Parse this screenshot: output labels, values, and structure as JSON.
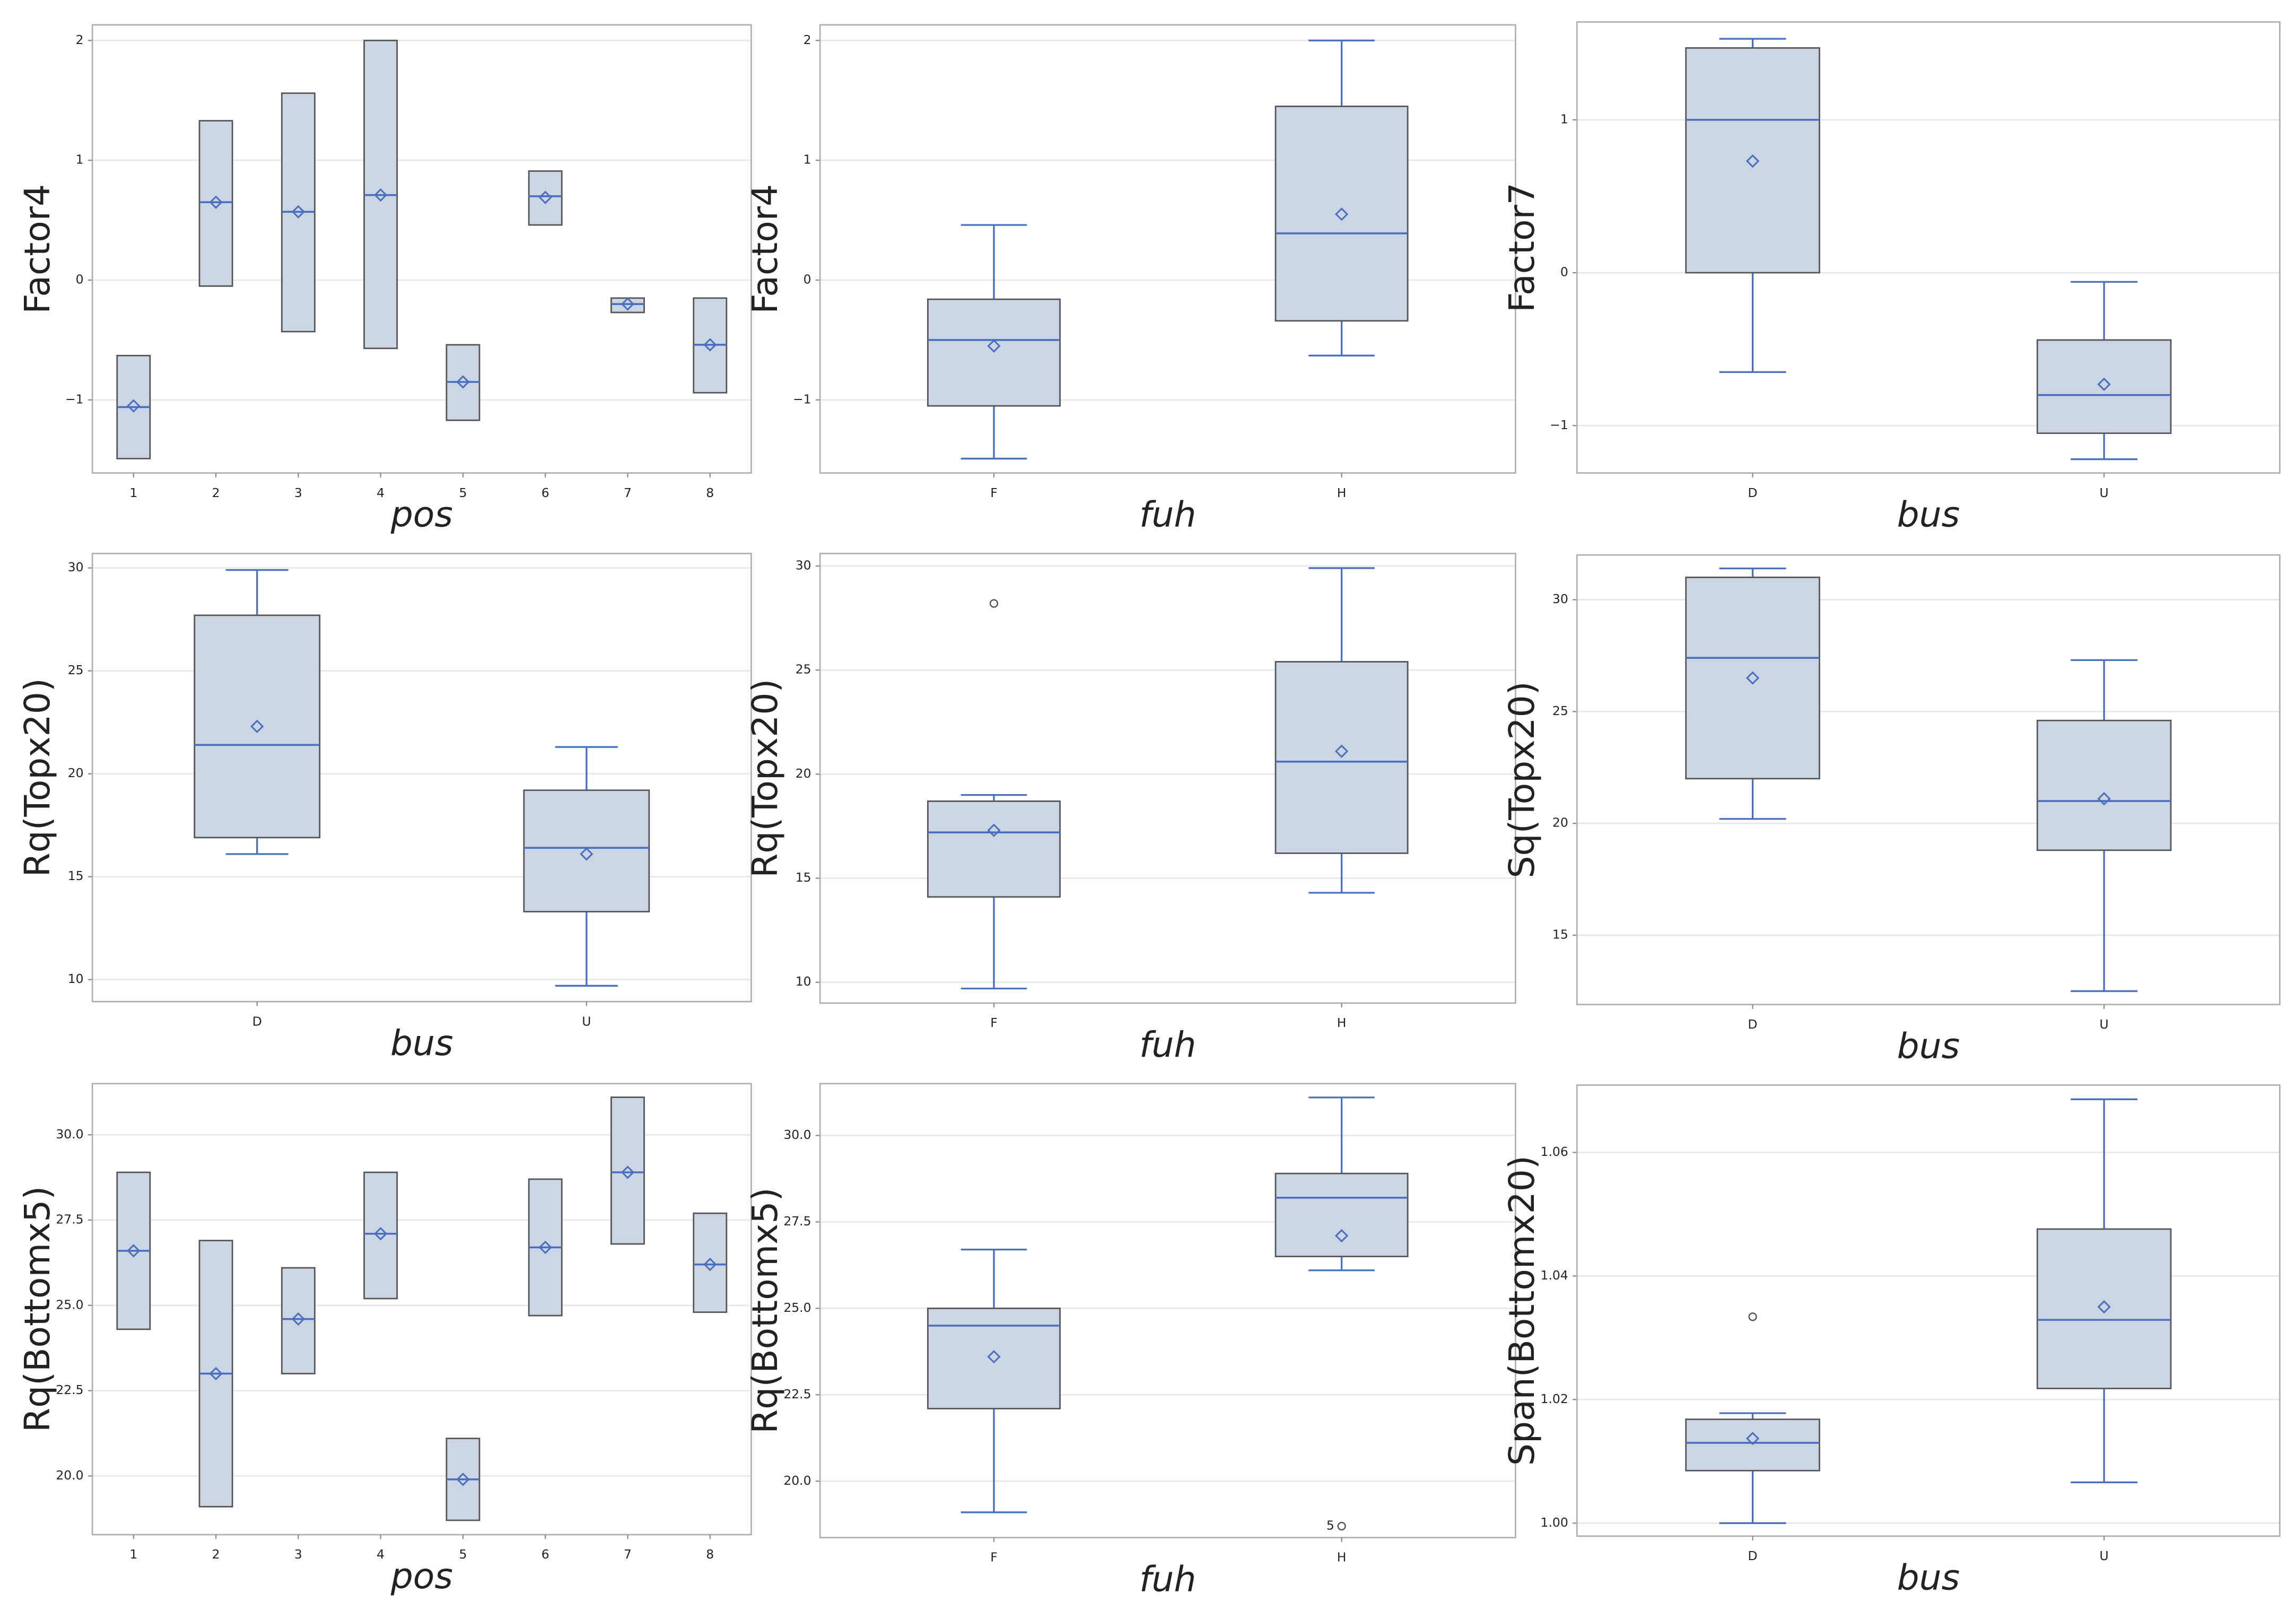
{
  "chart_data": [
    {
      "type": "box",
      "x_label": "pos",
      "y_label": "Factor4",
      "categories": [
        "1",
        "2",
        "3",
        "4",
        "5",
        "6",
        "7",
        "8"
      ],
      "ylim": [
        -1.61,
        2.13
      ],
      "yticks": [
        {
          "value": -1,
          "label": "−1"
        },
        0,
        1,
        2
      ],
      "grid": true,
      "color": "#4a6fbf",
      "fill": "#cbd5e4",
      "boxes": [
        {
          "q1": -1.49,
          "median": -1.06,
          "q3": -0.63,
          "mean": -1.05
        },
        {
          "q1": -0.05,
          "median": 0.65,
          "q3": 1.33,
          "mean": 0.65
        },
        {
          "q1": -0.43,
          "median": 0.57,
          "q3": 1.56,
          "mean": 0.57
        },
        {
          "q1": -0.57,
          "median": 0.71,
          "q3": 2.0,
          "mean": 0.71
        },
        {
          "q1": -1.17,
          "median": -0.85,
          "q3": -0.54,
          "mean": -0.85
        },
        {
          "q1": 0.46,
          "median": 0.7,
          "q3": 0.91,
          "mean": 0.69
        },
        {
          "q1": -0.27,
          "median": -0.2,
          "q3": -0.15,
          "mean": -0.2
        },
        {
          "q1": -0.94,
          "median": -0.54,
          "q3": -0.15,
          "mean": -0.54
        }
      ]
    },
    {
      "type": "box",
      "x_label": "fuh",
      "y_label": "Factor4",
      "categories": [
        "F",
        "H"
      ],
      "ylim": [
        -1.61,
        2.13
      ],
      "yticks": [
        {
          "value": -1,
          "label": "−1"
        },
        0,
        1,
        2
      ],
      "grid": true,
      "color": "#4a6fbf",
      "fill": "#cbd5e4",
      "boxes": [
        {
          "min": -1.49,
          "q1": -1.05,
          "median": -0.5,
          "q3": -0.16,
          "max": 0.46,
          "mean": -0.55
        },
        {
          "min": -0.63,
          "q1": -0.34,
          "median": 0.39,
          "q3": 1.45,
          "max": 2.0,
          "mean": 0.55
        }
      ]
    },
    {
      "type": "box",
      "x_label": "bus",
      "y_label": "Factor7",
      "categories": [
        "D",
        "U"
      ],
      "ylim": [
        -1.31,
        1.64
      ],
      "yticks": [
        {
          "value": -1,
          "label": "−1"
        },
        0,
        1
      ],
      "grid": true,
      "color": "#4a6fbf",
      "fill": "#cbd5e4",
      "boxes": [
        {
          "min": -0.65,
          "q1": 0.0,
          "median": 1.0,
          "q3": 1.47,
          "max": 1.53,
          "mean": 0.73
        },
        {
          "min": -1.22,
          "q1": -1.05,
          "median": -0.8,
          "q3": -0.44,
          "max": -0.06,
          "mean": -0.73
        }
      ]
    },
    {
      "type": "box",
      "x_label": "bus",
      "y_label": "Rq(Topx20)",
      "categories": [
        "D",
        "U"
      ],
      "ylim": [
        8.93,
        30.7
      ],
      "yticks": [
        10,
        15,
        20,
        25,
        30
      ],
      "grid": true,
      "color": "#4a6fbf",
      "fill": "#cbd5e4",
      "boxes": [
        {
          "min": 16.1,
          "q1": 16.9,
          "median": 21.4,
          "q3": 27.7,
          "max": 29.9,
          "mean": 22.3
        },
        {
          "min": 9.7,
          "q1": 13.3,
          "median": 16.4,
          "q3": 19.2,
          "max": 21.3,
          "mean": 16.1
        }
      ]
    },
    {
      "type": "box",
      "x_label": "fuh",
      "y_label": "Rq(Topx20)",
      "categories": [
        "F",
        "H"
      ],
      "ylim": [
        9.0,
        30.6
      ],
      "yticks": [
        10,
        15,
        20,
        25,
        30
      ],
      "grid": true,
      "color": "#4a6fbf",
      "fill": "#cbd5e4",
      "boxes": [
        {
          "min": 9.7,
          "q1": 14.1,
          "median": 17.2,
          "q3": 18.7,
          "max": 19.0,
          "mean": 17.3,
          "outliers": [
            28.2
          ]
        },
        {
          "min": 14.3,
          "q1": 16.2,
          "median": 20.6,
          "q3": 25.4,
          "max": 29.9,
          "mean": 21.1
        }
      ]
    },
    {
      "type": "box",
      "x_label": "bus",
      "y_label": "Sq(Topx20)",
      "categories": [
        "D",
        "U"
      ],
      "ylim": [
        11.9,
        32.0
      ],
      "yticks": [
        15,
        20,
        25,
        30
      ],
      "grid": true,
      "color": "#4a6fbf",
      "fill": "#cbd5e4",
      "boxes": [
        {
          "min": 20.2,
          "q1": 22.0,
          "median": 27.4,
          "q3": 31.0,
          "max": 31.4,
          "mean": 26.5
        },
        {
          "min": 12.5,
          "q1": 18.8,
          "median": 21.0,
          "q3": 24.6,
          "max": 27.3,
          "mean": 21.1
        }
      ]
    },
    {
      "type": "box",
      "x_label": "pos",
      "y_label": "Rq(Bottomx5)",
      "categories": [
        "1",
        "2",
        "3",
        "4",
        "5",
        "6",
        "7",
        "8"
      ],
      "ylim": [
        18.28,
        31.5
      ],
      "yticks": [
        {
          "value": 20,
          "label": "20.0"
        },
        22.5,
        {
          "value": 25,
          "label": "25.0"
        },
        27.5,
        {
          "value": 30,
          "label": "30.0"
        }
      ],
      "grid": true,
      "color": "#4a6fbf",
      "fill": "#cbd5e4",
      "boxes": [
        {
          "q1": 24.3,
          "median": 26.6,
          "q3": 28.9,
          "mean": 26.6
        },
        {
          "q1": 19.1,
          "median": 23.0,
          "q3": 26.9,
          "mean": 23.0
        },
        {
          "q1": 23.0,
          "median": 24.6,
          "q3": 26.1,
          "mean": 24.6
        },
        {
          "q1": 25.2,
          "median": 27.1,
          "q3": 28.9,
          "mean": 27.1
        },
        {
          "q1": 18.7,
          "median": 19.9,
          "q3": 21.1,
          "mean": 19.9
        },
        {
          "q1": 24.7,
          "median": 26.7,
          "q3": 28.7,
          "mean": 26.7
        },
        {
          "q1": 26.8,
          "median": 28.9,
          "q3": 31.1,
          "mean": 28.9
        },
        {
          "q1": 24.8,
          "median": 26.2,
          "q3": 27.7,
          "mean": 26.2
        }
      ]
    },
    {
      "type": "box",
      "x_label": "fuh",
      "y_label": "Rq(Bottomx5)",
      "categories": [
        "F",
        "H"
      ],
      "ylim": [
        18.37,
        31.5
      ],
      "yticks": [
        {
          "value": 20,
          "label": "20.0"
        },
        22.5,
        {
          "value": 25,
          "label": "25.0"
        },
        27.5,
        {
          "value": 30,
          "label": "30.0"
        }
      ],
      "grid": true,
      "color": "#4a6fbf",
      "fill": "#cbd5e4",
      "boxes": [
        {
          "min": 19.1,
          "q1": 22.1,
          "median": 24.5,
          "q3": 25.0,
          "max": 26.7,
          "mean": 23.6
        },
        {
          "min": 26.1,
          "q1": 26.5,
          "median": 28.2,
          "q3": 28.9,
          "max": 31.1,
          "mean": 27.1,
          "outliers": [
            18.7
          ],
          "outlier_labels": [
            "5"
          ]
        }
      ]
    },
    {
      "type": "box",
      "x_label": "bus",
      "y_label": "Span(Bottomx20)",
      "categories": [
        "D",
        "U"
      ],
      "ylim": [
        0.9979,
        1.0709
      ],
      "yticks": [
        {
          "value": 1,
          "label": "1.00"
        },
        1.02,
        1.04,
        1.06
      ],
      "grid": true,
      "color": "#4a6fbf",
      "fill": "#cbd5e4",
      "boxes": [
        {
          "min": 1.0,
          "q1": 1.0085,
          "median": 1.013,
          "q3": 1.0168,
          "max": 1.0178,
          "mean": 1.0137,
          "outliers": [
            1.0334
          ]
        },
        {
          "min": 1.0066,
          "q1": 1.0218,
          "median": 1.0329,
          "q3": 1.0476,
          "max": 1.0686,
          "mean": 1.035
        }
      ]
    }
  ]
}
